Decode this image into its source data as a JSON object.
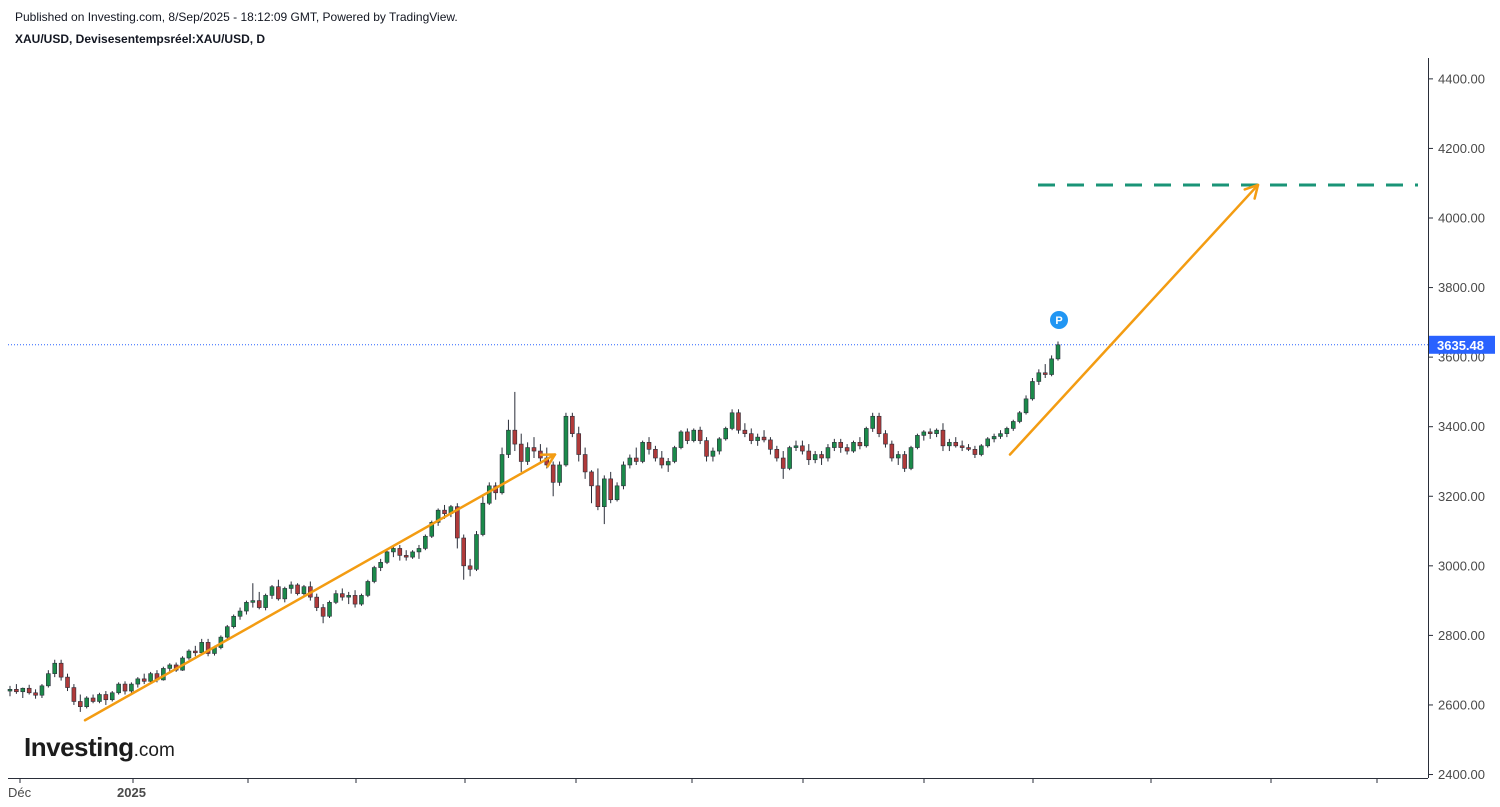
{
  "header": {
    "published": "Published on Investing.com, 8/Sep/2025 - 18:12:09 GMT, Powered by TradingView.",
    "symbol_line": "XAU/USD, Devisesentempsréel:XAU/USD, D"
  },
  "logo": {
    "main": "Investing",
    "domain": ".com"
  },
  "chart_data": {
    "type": "candlestick",
    "symbol": "XAU/USD",
    "interval": "D",
    "ylim": [
      2390,
      4460
    ],
    "y_ticks": [
      "4400.00",
      "4200.00",
      "4000.00",
      "3800.00",
      "3600.00",
      "3400.00",
      "3200.00",
      "3000.00",
      "2800.00",
      "2600.00",
      "2400.00"
    ],
    "x_labels": [
      {
        "label": "Déc",
        "bold": false
      },
      {
        "label": "2025",
        "bold": true
      }
    ],
    "last_price": {
      "label": "3635.48",
      "value": 3635.48,
      "color": "#2962ff"
    },
    "colors": {
      "up": "#26a69a",
      "down": "#ef5350",
      "up_body": "#1b8a4a",
      "down_body": "#b03a3a",
      "arrow": "#f39c12",
      "target": "#1a9477",
      "marker": "#2196f3"
    },
    "annotations": {
      "marker_label": "P",
      "target_level": 4095,
      "arrow_segments": [
        {
          "from": [
            2556,
            2556
          ],
          "to": [
            3320,
            3320
          ],
          "kind": "line"
        },
        {
          "from": [
            3320,
            3320
          ],
          "to": [
            4095,
            4095
          ],
          "kind": "arrow"
        }
      ]
    },
    "candles": [
      [
        2640,
        2655,
        2625,
        2645
      ],
      [
        2645,
        2660,
        2632,
        2638
      ],
      [
        2638,
        2650,
        2620,
        2648
      ],
      [
        2648,
        2658,
        2630,
        2635
      ],
      [
        2635,
        2645,
        2618,
        2628
      ],
      [
        2628,
        2660,
        2620,
        2655
      ],
      [
        2655,
        2700,
        2650,
        2690
      ],
      [
        2690,
        2730,
        2680,
        2720
      ],
      [
        2720,
        2730,
        2670,
        2680
      ],
      [
        2680,
        2690,
        2640,
        2650
      ],
      [
        2650,
        2660,
        2600,
        2610
      ],
      [
        2610,
        2630,
        2580,
        2595
      ],
      [
        2595,
        2625,
        2590,
        2620
      ],
      [
        2620,
        2630,
        2605,
        2610
      ],
      [
        2610,
        2635,
        2605,
        2630
      ],
      [
        2630,
        2640,
        2600,
        2615
      ],
      [
        2615,
        2640,
        2610,
        2635
      ],
      [
        2635,
        2665,
        2630,
        2660
      ],
      [
        2660,
        2668,
        2630,
        2640
      ],
      [
        2640,
        2665,
        2635,
        2660
      ],
      [
        2660,
        2680,
        2650,
        2675
      ],
      [
        2675,
        2690,
        2660,
        2668
      ],
      [
        2668,
        2695,
        2662,
        2690
      ],
      [
        2690,
        2700,
        2665,
        2672
      ],
      [
        2672,
        2710,
        2670,
        2705
      ],
      [
        2705,
        2720,
        2695,
        2715
      ],
      [
        2715,
        2722,
        2695,
        2700
      ],
      [
        2700,
        2740,
        2698,
        2735
      ],
      [
        2735,
        2760,
        2730,
        2755
      ],
      [
        2755,
        2770,
        2740,
        2750
      ],
      [
        2750,
        2790,
        2748,
        2780
      ],
      [
        2780,
        2790,
        2740,
        2748
      ],
      [
        2748,
        2770,
        2742,
        2765
      ],
      [
        2765,
        2800,
        2760,
        2795
      ],
      [
        2795,
        2830,
        2790,
        2825
      ],
      [
        2825,
        2860,
        2820,
        2855
      ],
      [
        2855,
        2880,
        2845,
        2870
      ],
      [
        2870,
        2900,
        2860,
        2895
      ],
      [
        2895,
        2950,
        2880,
        2900
      ],
      [
        2900,
        2925,
        2875,
        2880
      ],
      [
        2880,
        2920,
        2872,
        2915
      ],
      [
        2915,
        2945,
        2905,
        2940
      ],
      [
        2940,
        2960,
        2900,
        2905
      ],
      [
        2905,
        2940,
        2895,
        2935
      ],
      [
        2935,
        2955,
        2920,
        2945
      ],
      [
        2945,
        2950,
        2915,
        2920
      ],
      [
        2920,
        2945,
        2910,
        2940
      ],
      [
        2940,
        2955,
        2900,
        2910
      ],
      [
        2910,
        2920,
        2870,
        2880
      ],
      [
        2880,
        2890,
        2835,
        2855
      ],
      [
        2855,
        2900,
        2850,
        2895
      ],
      [
        2895,
        2930,
        2890,
        2920
      ],
      [
        2920,
        2935,
        2900,
        2910
      ],
      [
        2910,
        2925,
        2890,
        2915
      ],
      [
        2915,
        2930,
        2880,
        2890
      ],
      [
        2890,
        2920,
        2885,
        2915
      ],
      [
        2915,
        2960,
        2910,
        2955
      ],
      [
        2955,
        3000,
        2950,
        2995
      ],
      [
        2995,
        3020,
        2985,
        3010
      ],
      [
        3010,
        3045,
        3005,
        3040
      ],
      [
        3040,
        3055,
        3025,
        3050
      ],
      [
        3050,
        3060,
        3015,
        3030
      ],
      [
        3030,
        3045,
        3015,
        3025
      ],
      [
        3025,
        3045,
        3020,
        3040
      ],
      [
        3040,
        3060,
        3020,
        3050
      ],
      [
        3050,
        3090,
        3045,
        3085
      ],
      [
        3085,
        3130,
        3080,
        3125
      ],
      [
        3125,
        3165,
        3115,
        3160
      ],
      [
        3160,
        3175,
        3135,
        3150
      ],
      [
        3150,
        3175,
        3140,
        3170
      ],
      [
        3170,
        3180,
        3050,
        3080
      ],
      [
        3080,
        3090,
        2960,
        3000
      ],
      [
        3000,
        3020,
        2970,
        2990
      ],
      [
        2990,
        3100,
        2985,
        3090
      ],
      [
        3090,
        3200,
        3085,
        3180
      ],
      [
        3180,
        3240,
        3175,
        3230
      ],
      [
        3230,
        3240,
        3190,
        3210
      ],
      [
        3210,
        3340,
        3205,
        3320
      ],
      [
        3320,
        3420,
        3310,
        3390
      ],
      [
        3390,
        3500,
        3330,
        3350
      ],
      [
        3350,
        3380,
        3270,
        3300
      ],
      [
        3300,
        3355,
        3290,
        3340
      ],
      [
        3340,
        3370,
        3310,
        3330
      ],
      [
        3330,
        3350,
        3295,
        3310
      ],
      [
        3310,
        3340,
        3280,
        3290
      ],
      [
        3290,
        3300,
        3200,
        3240
      ],
      [
        3240,
        3300,
        3230,
        3290
      ],
      [
        3290,
        3440,
        3285,
        3430
      ],
      [
        3430,
        3440,
        3370,
        3380
      ],
      [
        3380,
        3400,
        3300,
        3320
      ],
      [
        3320,
        3340,
        3250,
        3270
      ],
      [
        3270,
        3275,
        3180,
        3230
      ],
      [
        3230,
        3280,
        3160,
        3170
      ],
      [
        3170,
        3260,
        3120,
        3250
      ],
      [
        3250,
        3270,
        3180,
        3190
      ],
      [
        3190,
        3240,
        3185,
        3230
      ],
      [
        3230,
        3300,
        3220,
        3290
      ],
      [
        3290,
        3320,
        3280,
        3310
      ],
      [
        3310,
        3340,
        3290,
        3300
      ],
      [
        3300,
        3360,
        3295,
        3355
      ],
      [
        3355,
        3370,
        3320,
        3335
      ],
      [
        3335,
        3345,
        3300,
        3310
      ],
      [
        3310,
        3330,
        3280,
        3290
      ],
      [
        3290,
        3310,
        3270,
        3300
      ],
      [
        3300,
        3345,
        3295,
        3340
      ],
      [
        3340,
        3390,
        3335,
        3385
      ],
      [
        3385,
        3395,
        3350,
        3360
      ],
      [
        3360,
        3395,
        3355,
        3390
      ],
      [
        3390,
        3400,
        3350,
        3360
      ],
      [
        3360,
        3370,
        3300,
        3315
      ],
      [
        3315,
        3340,
        3300,
        3330
      ],
      [
        3330,
        3370,
        3320,
        3365
      ],
      [
        3365,
        3400,
        3360,
        3395
      ],
      [
        3395,
        3450,
        3390,
        3440
      ],
      [
        3440,
        3450,
        3380,
        3390
      ],
      [
        3390,
        3410,
        3370,
        3380
      ],
      [
        3380,
        3395,
        3350,
        3360
      ],
      [
        3360,
        3380,
        3345,
        3370
      ],
      [
        3370,
        3390,
        3355,
        3362
      ],
      [
        3362,
        3370,
        3320,
        3335
      ],
      [
        3335,
        3345,
        3300,
        3310
      ],
      [
        3310,
        3330,
        3250,
        3280
      ],
      [
        3280,
        3345,
        3275,
        3340
      ],
      [
        3340,
        3360,
        3330,
        3345
      ],
      [
        3345,
        3360,
        3320,
        3330
      ],
      [
        3330,
        3350,
        3290,
        3305
      ],
      [
        3305,
        3330,
        3295,
        3320
      ],
      [
        3320,
        3330,
        3290,
        3310
      ],
      [
        3310,
        3350,
        3300,
        3340
      ],
      [
        3340,
        3365,
        3330,
        3355
      ],
      [
        3355,
        3365,
        3325,
        3340
      ],
      [
        3340,
        3350,
        3320,
        3330
      ],
      [
        3330,
        3360,
        3325,
        3355
      ],
      [
        3355,
        3370,
        3335,
        3345
      ],
      [
        3345,
        3400,
        3340,
        3395
      ],
      [
        3395,
        3440,
        3385,
        3430
      ],
      [
        3430,
        3440,
        3370,
        3380
      ],
      [
        3380,
        3390,
        3340,
        3350
      ],
      [
        3350,
        3360,
        3300,
        3310
      ],
      [
        3310,
        3330,
        3290,
        3320
      ],
      [
        3320,
        3330,
        3270,
        3280
      ],
      [
        3280,
        3345,
        3275,
        3340
      ],
      [
        3340,
        3380,
        3335,
        3375
      ],
      [
        3375,
        3390,
        3360,
        3385
      ],
      [
        3385,
        3395,
        3365,
        3380
      ],
      [
        3380,
        3395,
        3370,
        3390
      ],
      [
        3390,
        3410,
        3330,
        3345
      ],
      [
        3345,
        3365,
        3330,
        3355
      ],
      [
        3355,
        3370,
        3340,
        3345
      ],
      [
        3345,
        3360,
        3330,
        3340
      ],
      [
        3340,
        3350,
        3330,
        3335
      ],
      [
        3335,
        3345,
        3310,
        3320
      ],
      [
        3320,
        3350,
        3315,
        3345
      ],
      [
        3345,
        3370,
        3340,
        3365
      ],
      [
        3365,
        3380,
        3355,
        3372
      ],
      [
        3372,
        3390,
        3365,
        3380
      ],
      [
        3380,
        3400,
        3370,
        3395
      ],
      [
        3395,
        3420,
        3388,
        3415
      ],
      [
        3415,
        3445,
        3410,
        3440
      ],
      [
        3440,
        3490,
        3435,
        3480
      ],
      [
        3480,
        3540,
        3475,
        3530
      ],
      [
        3530,
        3565,
        3520,
        3555
      ],
      [
        3555,
        3580,
        3540,
        3550
      ],
      [
        3550,
        3605,
        3545,
        3595
      ],
      [
        3595,
        3645,
        3590,
        3635.48
      ]
    ]
  }
}
